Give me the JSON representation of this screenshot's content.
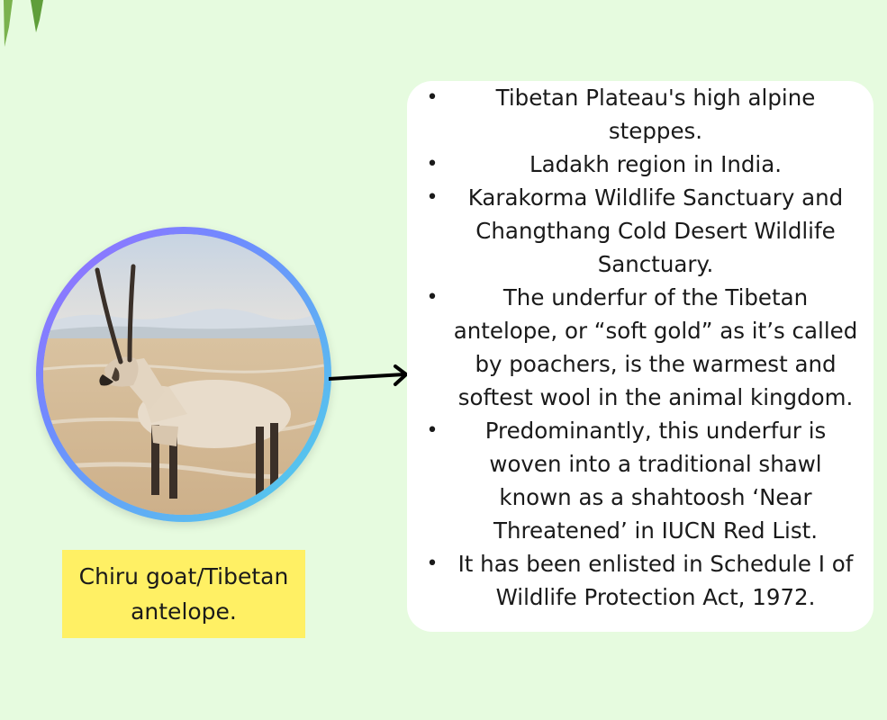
{
  "facts": [
    {
      "text": "Tibetan Plateau's high alpine steppes."
    },
    {
      "text": "Ladakh region in India."
    },
    {
      "text": "Karakorma Wildlife Sanctuary and Changthang Cold Desert Wildlife Sanctuary."
    },
    {
      "text": "The underfur of the Tibetan antelope, or “soft gold” as it’s called by poachers, is the warmest and softest wool in the animal kingdom."
    },
    {
      "text": "Predominantly, this underfur is woven into a traditional shawl known as a shahtoosh ‘Near Threatened’ in IUCN Red List."
    },
    {
      "text": "It has been enlisted in Schedule I of Wildlife Protection Act, 1972."
    }
  ],
  "bullet_symbol": "•",
  "caption": {
    "text": "Chiru goat/Tibetan antelope."
  },
  "icons": {
    "photo": "tibetan-antelope-photo",
    "arrow": "arrow-right-icon",
    "decor": "leaf-icon"
  },
  "colors": {
    "background": "#e6fbdf",
    "card": "#ffffff",
    "caption_bg": "#fff064",
    "ring_start": "#9f6bff",
    "ring_end": "#4fd3e8"
  }
}
